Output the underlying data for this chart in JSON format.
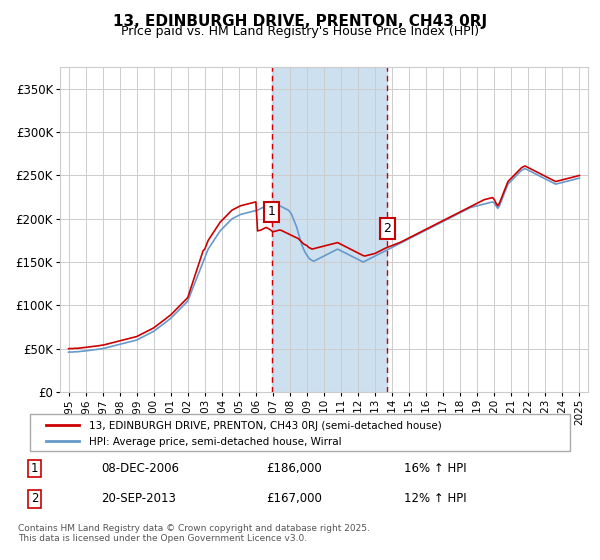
{
  "title": "13, EDINBURGH DRIVE, PRENTON, CH43 0RJ",
  "subtitle": "Price paid vs. HM Land Registry's House Price Index (HPI)",
  "ylabel_ticks": [
    "£0",
    "£50K",
    "£100K",
    "£150K",
    "£200K",
    "£250K",
    "£300K",
    "£350K"
  ],
  "ytick_values": [
    0,
    50000,
    100000,
    150000,
    200000,
    250000,
    300000,
    350000
  ],
  "ylim": [
    0,
    375000
  ],
  "xlim_start": 1994.5,
  "xlim_end": 2025.5,
  "xtick_years": [
    1995,
    1996,
    1997,
    1998,
    1999,
    2000,
    2001,
    2002,
    2003,
    2004,
    2005,
    2006,
    2007,
    2008,
    2009,
    2010,
    2011,
    2012,
    2013,
    2014,
    2015,
    2016,
    2017,
    2018,
    2019,
    2020,
    2021,
    2022,
    2023,
    2024,
    2025
  ],
  "sale1_x": 2006.93,
  "sale1_y": 186000,
  "sale1_label": "1",
  "sale2_x": 2013.72,
  "sale2_y": 167000,
  "sale2_label": "2",
  "shaded_x_start": 2006.93,
  "shaded_x_end": 2013.72,
  "red_line_color": "#cc0000",
  "blue_line_color": "#6699cc",
  "shaded_color": "#cce0f0",
  "grid_color": "#cccccc",
  "background_color": "#ffffff",
  "legend_entry1": "13, EDINBURGH DRIVE, PRENTON, CH43 0RJ (semi-detached house)",
  "legend_entry2": "HPI: Average price, semi-detached house, Wirral",
  "table_row1": [
    "1",
    "08-DEC-2006",
    "£186,000",
    "16% ↑ HPI"
  ],
  "table_row2": [
    "2",
    "20-SEP-2013",
    "£167,000",
    "12% ↑ HPI"
  ],
  "footer": "Contains HM Land Registry data © Crown copyright and database right 2025.\nThis data is licensed under the Open Government Licence v3.0.",
  "hpi_data": {
    "years": [
      1995.0,
      1995.1,
      1995.2,
      1995.3,
      1995.4,
      1995.5,
      1995.6,
      1995.7,
      1995.8,
      1995.9,
      1996.0,
      1996.1,
      1996.2,
      1996.3,
      1996.4,
      1996.5,
      1996.6,
      1996.7,
      1996.8,
      1996.9,
      1997.0,
      1997.1,
      1997.2,
      1997.3,
      1997.4,
      1997.5,
      1997.6,
      1997.7,
      1997.8,
      1997.9,
      1998.0,
      1998.1,
      1998.2,
      1998.3,
      1998.4,
      1998.5,
      1998.6,
      1998.7,
      1998.8,
      1998.9,
      1999.0,
      1999.1,
      1999.2,
      1999.3,
      1999.4,
      1999.5,
      1999.6,
      1999.7,
      1999.8,
      1999.9,
      2000.0,
      2000.1,
      2000.2,
      2000.3,
      2000.4,
      2000.5,
      2000.6,
      2000.7,
      2000.8,
      2000.9,
      2001.0,
      2001.1,
      2001.2,
      2001.3,
      2001.4,
      2001.5,
      2001.6,
      2001.7,
      2001.8,
      2001.9,
      2002.0,
      2002.1,
      2002.2,
      2002.3,
      2002.4,
      2002.5,
      2002.6,
      2002.7,
      2002.8,
      2002.9,
      2003.0,
      2003.1,
      2003.2,
      2003.3,
      2003.4,
      2003.5,
      2003.6,
      2003.7,
      2003.8,
      2003.9,
      2004.0,
      2004.1,
      2004.2,
      2004.3,
      2004.4,
      2004.5,
      2004.6,
      2004.7,
      2004.8,
      2004.9,
      2005.0,
      2005.1,
      2005.2,
      2005.3,
      2005.4,
      2005.5,
      2005.6,
      2005.7,
      2005.8,
      2005.9,
      2006.0,
      2006.1,
      2006.2,
      2006.3,
      2006.4,
      2006.5,
      2006.6,
      2006.7,
      2006.8,
      2006.9,
      2007.0,
      2007.1,
      2007.2,
      2007.3,
      2007.4,
      2007.5,
      2007.6,
      2007.7,
      2007.8,
      2007.9,
      2008.0,
      2008.1,
      2008.2,
      2008.3,
      2008.4,
      2008.5,
      2008.6,
      2008.7,
      2008.8,
      2008.9,
      2009.0,
      2009.1,
      2009.2,
      2009.3,
      2009.4,
      2009.5,
      2009.6,
      2009.7,
      2009.8,
      2009.9,
      2010.0,
      2010.1,
      2010.2,
      2010.3,
      2010.4,
      2010.5,
      2010.6,
      2010.7,
      2010.8,
      2010.9,
      2011.0,
      2011.1,
      2011.2,
      2011.3,
      2011.4,
      2011.5,
      2011.6,
      2011.7,
      2011.8,
      2011.9,
      2012.0,
      2012.1,
      2012.2,
      2012.3,
      2012.4,
      2012.5,
      2012.6,
      2012.7,
      2012.8,
      2012.9,
      2013.0,
      2013.1,
      2013.2,
      2013.3,
      2013.4,
      2013.5,
      2013.6,
      2013.7,
      2013.8,
      2013.9,
      2014.0,
      2014.1,
      2014.2,
      2014.3,
      2014.4,
      2014.5,
      2014.6,
      2014.7,
      2014.8,
      2014.9,
      2015.0,
      2015.1,
      2015.2,
      2015.3,
      2015.4,
      2015.5,
      2015.6,
      2015.7,
      2015.8,
      2015.9,
      2016.0,
      2016.1,
      2016.2,
      2016.3,
      2016.4,
      2016.5,
      2016.6,
      2016.7,
      2016.8,
      2016.9,
      2017.0,
      2017.1,
      2017.2,
      2017.3,
      2017.4,
      2017.5,
      2017.6,
      2017.7,
      2017.8,
      2017.9,
      2018.0,
      2018.1,
      2018.2,
      2018.3,
      2018.4,
      2018.5,
      2018.6,
      2018.7,
      2018.8,
      2018.9,
      2019.0,
      2019.1,
      2019.2,
      2019.3,
      2019.4,
      2019.5,
      2019.6,
      2019.7,
      2019.8,
      2019.9,
      2020.0,
      2020.1,
      2020.2,
      2020.3,
      2020.4,
      2020.5,
      2020.6,
      2020.7,
      2020.8,
      2020.9,
      2021.0,
      2021.1,
      2021.2,
      2021.3,
      2021.4,
      2021.5,
      2021.6,
      2021.7,
      2021.8,
      2021.9,
      2022.0,
      2022.1,
      2022.2,
      2022.3,
      2022.4,
      2022.5,
      2022.6,
      2022.7,
      2022.8,
      2022.9,
      2023.0,
      2023.1,
      2023.2,
      2023.3,
      2023.4,
      2023.5,
      2023.6,
      2023.7,
      2023.8,
      2023.9,
      2024.0,
      2024.1,
      2024.2,
      2024.3,
      2024.4,
      2024.5,
      2024.6,
      2024.7,
      2024.8,
      2024.9,
      2025.0
    ],
    "values": [
      46000,
      46200,
      46100,
      46300,
      46500,
      46400,
      46600,
      46800,
      47000,
      47200,
      47500,
      47800,
      48000,
      48200,
      48500,
      48800,
      49000,
      49200,
      49500,
      49800,
      50000,
      50500,
      51000,
      51500,
      52000,
      52500,
      53000,
      53500,
      54000,
      54500,
      55000,
      55500,
      56000,
      56500,
      57000,
      57500,
      58000,
      58500,
      59000,
      59500,
      60000,
      61000,
      62000,
      63000,
      64000,
      65000,
      66000,
      67000,
      68000,
      69000,
      70000,
      71500,
      73000,
      74500,
      76000,
      77500,
      79000,
      80500,
      82000,
      83500,
      85000,
      87000,
      89000,
      91000,
      93000,
      95000,
      97000,
      99000,
      101000,
      103000,
      105000,
      110000,
      115000,
      120000,
      125000,
      130000,
      135000,
      140000,
      145000,
      150000,
      155000,
      160000,
      165000,
      168000,
      171000,
      174000,
      177000,
      180000,
      183000,
      186000,
      188000,
      190000,
      192000,
      194000,
      196000,
      198000,
      200000,
      201000,
      202000,
      203000,
      204000,
      205000,
      205500,
      206000,
      206500,
      207000,
      207500,
      208000,
      208500,
      209000,
      209500,
      210000,
      211000,
      212000,
      213000,
      214000,
      215000,
      214000,
      213000,
      212000,
      211000,
      212000,
      213000,
      214000,
      215000,
      214000,
      213000,
      212000,
      211000,
      210000,
      208000,
      205000,
      200000,
      195000,
      190000,
      183000,
      176000,
      170000,
      165000,
      161000,
      158000,
      155000,
      153000,
      152000,
      151000,
      152000,
      153000,
      154000,
      155000,
      156000,
      157000,
      158000,
      159000,
      160000,
      161000,
      162000,
      163000,
      164000,
      165000,
      164000,
      163000,
      162000,
      161000,
      160000,
      159000,
      158000,
      157000,
      156000,
      155000,
      154000,
      153000,
      152000,
      151000,
      150000,
      151000,
      152000,
      153000,
      154000,
      155000,
      156000,
      157000,
      158000,
      159000,
      160000,
      161000,
      162000,
      163000,
      164000,
      165000,
      166000,
      167000,
      168000,
      169000,
      170000,
      171000,
      172000,
      173000,
      174000,
      175000,
      176000,
      177000,
      178000,
      179000,
      180000,
      181000,
      182000,
      183000,
      184000,
      185000,
      186000,
      187000,
      188000,
      189000,
      190000,
      191000,
      192000,
      193000,
      194000,
      195000,
      196000,
      197000,
      198000,
      199000,
      200000,
      201000,
      202000,
      203000,
      204000,
      205000,
      206000,
      207000,
      208000,
      209000,
      210000,
      211000,
      212000,
      213000,
      213500,
      214000,
      214500,
      215000,
      215500,
      216000,
      216500,
      217000,
      217500,
      218000,
      218500,
      219000,
      219500,
      218000,
      215000,
      212000,
      215000,
      220000,
      225000,
      230000,
      235000,
      240000,
      242000,
      244000,
      246000,
      248000,
      250000,
      252000,
      254000,
      256000,
      257000,
      258000,
      257000,
      256000,
      255000,
      254000,
      253000,
      252000,
      251000,
      250000,
      249000,
      248000,
      247000,
      246000,
      245000,
      244000,
      243000,
      242000,
      241000,
      240000,
      240500,
      241000,
      241500,
      242000,
      242500,
      243000,
      243500,
      244000,
      244500,
      245000,
      245500,
      246000,
      246500,
      247000
    ]
  },
  "red_data": {
    "years": [
      1995.0,
      1995.1,
      1995.2,
      1995.3,
      1995.4,
      1995.5,
      1995.6,
      1995.7,
      1995.8,
      1995.9,
      1996.0,
      1996.1,
      1996.2,
      1996.3,
      1996.4,
      1996.5,
      1996.6,
      1996.7,
      1996.8,
      1996.9,
      1997.0,
      1997.1,
      1997.2,
      1997.3,
      1997.4,
      1997.5,
      1997.6,
      1997.7,
      1997.8,
      1997.9,
      1998.0,
      1998.1,
      1998.2,
      1998.3,
      1998.4,
      1998.5,
      1998.6,
      1998.7,
      1998.8,
      1998.9,
      1999.0,
      1999.1,
      1999.2,
      1999.3,
      1999.4,
      1999.5,
      1999.6,
      1999.7,
      1999.8,
      1999.9,
      2000.0,
      2000.1,
      2000.2,
      2000.3,
      2000.4,
      2000.5,
      2000.6,
      2000.7,
      2000.8,
      2000.9,
      2001.0,
      2001.1,
      2001.2,
      2001.3,
      2001.4,
      2001.5,
      2001.6,
      2001.7,
      2001.8,
      2001.9,
      2002.0,
      2002.1,
      2002.2,
      2002.3,
      2002.4,
      2002.5,
      2002.6,
      2002.7,
      2002.8,
      2002.9,
      2003.0,
      2003.1,
      2003.2,
      2003.3,
      2003.4,
      2003.5,
      2003.6,
      2003.7,
      2003.8,
      2003.9,
      2004.0,
      2004.1,
      2004.2,
      2004.3,
      2004.4,
      2004.5,
      2004.6,
      2004.7,
      2004.8,
      2004.9,
      2005.0,
      2005.1,
      2005.2,
      2005.3,
      2005.4,
      2005.5,
      2005.6,
      2005.7,
      2005.8,
      2005.9,
      2006.0,
      2006.1,
      2006.2,
      2006.3,
      2006.4,
      2006.5,
      2006.6,
      2006.7,
      2006.8,
      2006.93,
      2007.0,
      2007.1,
      2007.2,
      2007.3,
      2007.4,
      2007.5,
      2008.5,
      2008.6,
      2008.7,
      2008.8,
      2008.9,
      2009.0,
      2009.1,
      2009.2,
      2009.3,
      2009.4,
      2009.5,
      2009.6,
      2009.7,
      2009.8,
      2009.9,
      2010.0,
      2010.1,
      2010.2,
      2010.3,
      2010.4,
      2010.5,
      2010.6,
      2010.7,
      2010.8,
      2010.9,
      2011.0,
      2011.1,
      2011.2,
      2011.3,
      2011.4,
      2011.5,
      2011.6,
      2011.7,
      2011.8,
      2011.9,
      2012.0,
      2012.1,
      2012.2,
      2012.3,
      2012.4,
      2012.5,
      2012.6,
      2012.7,
      2012.8,
      2012.9,
      2013.0,
      2013.1,
      2013.2,
      2013.3,
      2013.4,
      2013.5,
      2013.6,
      2013.72,
      2014.5,
      2014.6,
      2014.7,
      2014.8,
      2014.9,
      2015.0,
      2015.1,
      2015.2,
      2015.3,
      2015.4,
      2015.5,
      2015.6,
      2015.7,
      2015.8,
      2015.9,
      2016.0,
      2016.1,
      2016.2,
      2016.3,
      2016.4,
      2016.5,
      2016.6,
      2016.7,
      2016.8,
      2016.9,
      2017.0,
      2017.1,
      2017.2,
      2017.3,
      2017.4,
      2017.5,
      2017.6,
      2017.7,
      2017.8,
      2017.9,
      2018.0,
      2018.1,
      2018.2,
      2018.3,
      2018.4,
      2018.5,
      2018.6,
      2018.7,
      2018.8,
      2018.9,
      2019.0,
      2019.1,
      2019.2,
      2019.3,
      2019.4,
      2019.5,
      2019.6,
      2019.7,
      2019.8,
      2019.9,
      2020.0,
      2020.1,
      2020.2,
      2020.3,
      2020.4,
      2020.5,
      2020.6,
      2020.7,
      2020.8,
      2020.9,
      2021.0,
      2021.1,
      2021.2,
      2021.3,
      2021.4,
      2021.5,
      2021.6,
      2021.7,
      2021.8,
      2021.9,
      2022.0,
      2022.1,
      2022.2,
      2022.3,
      2022.4,
      2022.5,
      2022.6,
      2022.7,
      2022.8,
      2022.9,
      2023.0,
      2023.1,
      2023.2,
      2023.3,
      2023.4,
      2023.5,
      2023.6,
      2023.7,
      2023.8,
      2023.9,
      2024.0,
      2024.1,
      2024.2,
      2024.3,
      2024.4,
      2024.5,
      2024.6,
      2024.7,
      2024.8,
      2024.9,
      2025.0
    ],
    "values": [
      50000,
      50200,
      50100,
      50300,
      50500,
      50400,
      50600,
      50800,
      51000,
      51200,
      51500,
      51800,
      52000,
      52200,
      52500,
      52800,
      53000,
      53200,
      53500,
      53800,
      54000,
      54500,
      55000,
      55500,
      56000,
      56500,
      57000,
      57500,
      58000,
      58500,
      59000,
      59500,
      60000,
      60500,
      61000,
      61500,
      62000,
      62500,
      63000,
      63500,
      64000,
      65000,
      66000,
      67000,
      68000,
      69000,
      70000,
      71000,
      72000,
      73000,
      74000,
      75500,
      77000,
      78500,
      80000,
      81500,
      83000,
      84500,
      86000,
      87500,
      89000,
      91000,
      93000,
      95000,
      97000,
      99000,
      101000,
      103000,
      105000,
      107000,
      109000,
      115000,
      121000,
      127000,
      133000,
      139000,
      145000,
      151000,
      157000,
      163000,
      165000,
      170000,
      175000,
      178000,
      181000,
      184000,
      187000,
      190000,
      193000,
      196000,
      198000,
      200000,
      202000,
      204000,
      206000,
      208000,
      210000,
      211000,
      212000,
      213000,
      214000,
      215000,
      215500,
      216000,
      216500,
      217000,
      217500,
      218000,
      218500,
      219000,
      219500,
      186000,
      186500,
      187000,
      188000,
      189000,
      190000,
      189000,
      188000,
      186000,
      185000,
      185500,
      186000,
      186500,
      187000,
      186500,
      177000,
      175000,
      173000,
      171000,
      170000,
      169000,
      167000,
      166000,
      165000,
      165500,
      166000,
      166500,
      167000,
      167500,
      168000,
      168500,
      169000,
      169500,
      170000,
      170500,
      171000,
      171500,
      172000,
      172500,
      171500,
      170500,
      169500,
      168500,
      167500,
      166500,
      165500,
      164500,
      163500,
      162500,
      161500,
      160500,
      159500,
      158500,
      157500,
      157000,
      157500,
      158000,
      158500,
      159000,
      159500,
      160000,
      161000,
      162000,
      163000,
      164000,
      165000,
      166000,
      167000,
      173000,
      174000,
      175000,
      176000,
      177000,
      178000,
      179000,
      180000,
      181000,
      182000,
      183000,
      184000,
      185000,
      186000,
      187000,
      188000,
      189000,
      190000,
      191000,
      192000,
      193000,
      194000,
      195000,
      196000,
      197000,
      198000,
      199000,
      200000,
      201000,
      202000,
      203000,
      204000,
      205000,
      206000,
      207000,
      208000,
      209000,
      210000,
      211000,
      212000,
      213000,
      214000,
      215000,
      216000,
      217000,
      218000,
      219000,
      220000,
      221000,
      222000,
      222500,
      223000,
      223500,
      224000,
      224500,
      222000,
      218000,
      215000,
      218000,
      223000,
      228000,
      233000,
      238000,
      243000,
      245000,
      247000,
      249000,
      251000,
      253000,
      255000,
      257000,
      259000,
      260000,
      261000,
      260000,
      259000,
      258000,
      257000,
      256000,
      255000,
      254000,
      253000,
      252000,
      251000,
      250000,
      249000,
      248000,
      247000,
      246000,
      245000,
      244000,
      243000,
      243500,
      244000,
      244500,
      245000,
      245500,
      246000,
      246500,
      247000,
      247500,
      248000,
      248500,
      249000,
      249500,
      250000
    ]
  }
}
